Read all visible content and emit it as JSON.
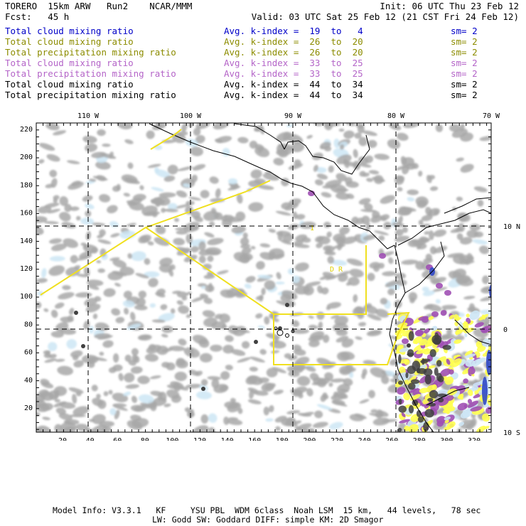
{
  "header": {
    "left_line1": "TORERO  15km ARW   Run2    NCAR/MMM",
    "left_line2": "Fcst:   45 h",
    "init": "Init: 06 UTC Thu 23 Feb 12",
    "valid": "Valid: 03 UTC Sat 25 Feb 12 (21 CST Fri 24 Feb 12)"
  },
  "legend": [
    {
      "name": "Total cloud mixing ratio",
      "kindex": "Avg. k-index =  19  to   4",
      "sm": "sm= 2",
      "color": "#0000c8"
    },
    {
      "name": "Total cloud mixing ratio",
      "kindex": "Avg. k-index =  26  to  20",
      "sm": "sm= 2",
      "color": "#8c8c00"
    },
    {
      "name": "Total precipitation mixing ratio",
      "kindex": "Avg. k-index =  26  to  20",
      "sm": "sm= 2",
      "color": "#8c8c00"
    },
    {
      "name": "Total cloud mixing ratio",
      "kindex": "Avg. k-index =  33  to  25",
      "sm": "sm= 2",
      "color": "#b464c8"
    },
    {
      "name": "Total precipitation mixing ratio",
      "kindex": "Avg. k-index =  33  to  25",
      "sm": "sm= 2",
      "color": "#b464c8"
    },
    {
      "name": "Total cloud mixing ratio",
      "kindex": "Avg. k-index =  44  to  34",
      "sm": "sm= 2",
      "color": "#000000"
    },
    {
      "name": "Total precipitation mixing ratio",
      "kindex": "Avg. k-index =  44  to  34",
      "sm": "sm= 2",
      "color": "#000000"
    }
  ],
  "map": {
    "top_lon_labels": [
      "110 W",
      "100 W",
      "90 W",
      "80 W",
      "70 W"
    ],
    "right_lat_labels": [
      "10 N",
      "0",
      "10 S"
    ],
    "y_ticks": [
      "220",
      "200",
      "180",
      "160",
      "140",
      "120",
      "100",
      "80",
      "60",
      "40",
      "20"
    ],
    "x_ticks": [
      "20",
      "40",
      "60",
      "80",
      "100",
      "120",
      "140",
      "160",
      "180",
      "200",
      "220",
      "240",
      "260",
      "280",
      "300",
      "320"
    ],
    "domain_labels": [
      "1",
      "D  R"
    ],
    "colors": {
      "cloud_gray": "#a8a8a8",
      "light_blue": "#cde6f5",
      "purple": "#a050b4",
      "yellow": "#ffff50",
      "blue": "#3048c8",
      "dark": "#404040",
      "boundary_yellow": "#f0e020"
    }
  },
  "footer": {
    "line1": "Model Info: V3.3.1   KF     YSU PBL  WDM 6class  Noah LSM  15 km,   44 levels,   78 sec",
    "line2": "LW: Godd SW: Goddard DIFF: simple KM: 2D Smagor"
  }
}
